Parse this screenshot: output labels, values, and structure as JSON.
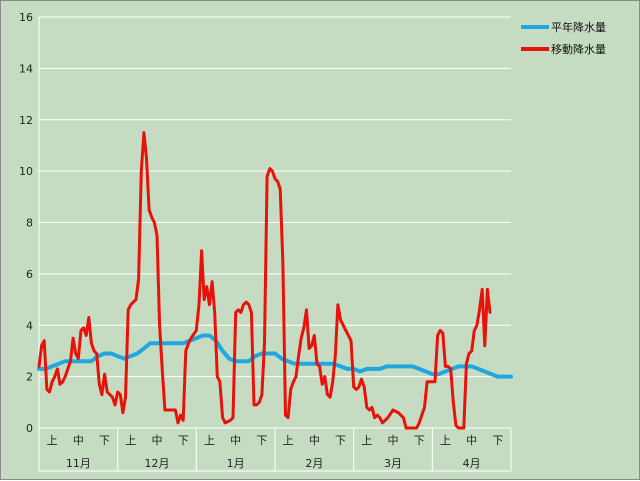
{
  "chart_data": {
    "type": "line",
    "title": "",
    "xlabel": "",
    "ylabel": "",
    "ylim": [
      0,
      16
    ],
    "yticks": [
      0,
      2,
      4,
      6,
      8,
      10,
      12,
      14,
      16
    ],
    "grid": "horizontal",
    "legend_position": "top-right",
    "month_labels": [
      "11月",
      "12月",
      "1月",
      "2月",
      "3月",
      "4月"
    ],
    "decade_labels": [
      "上",
      "中",
      "下"
    ],
    "x_unit": "pentad index (0 = start of 11月, 36 = end of 4月)",
    "x_range": [
      0,
      36
    ],
    "series": [
      {
        "name": "平年降水量",
        "color": "#1ea7e1",
        "points": [
          [
            0,
            2.3
          ],
          [
            0.5,
            2.3
          ],
          [
            1,
            2.4
          ],
          [
            1.5,
            2.5
          ],
          [
            2,
            2.6
          ],
          [
            2.5,
            2.6
          ],
          [
            3,
            2.6
          ],
          [
            3.5,
            2.6
          ],
          [
            4,
            2.6
          ],
          [
            4.5,
            2.8
          ],
          [
            5,
            2.9
          ],
          [
            5.5,
            2.9
          ],
          [
            6,
            2.8
          ],
          [
            6.5,
            2.7
          ],
          [
            7,
            2.8
          ],
          [
            7.5,
            2.9
          ],
          [
            8,
            3.1
          ],
          [
            8.5,
            3.3
          ],
          [
            9,
            3.3
          ],
          [
            9.5,
            3.3
          ],
          [
            10,
            3.3
          ],
          [
            10.5,
            3.3
          ],
          [
            11,
            3.3
          ],
          [
            11.5,
            3.4
          ],
          [
            12,
            3.5
          ],
          [
            12.5,
            3.6
          ],
          [
            13,
            3.6
          ],
          [
            13.5,
            3.4
          ],
          [
            14,
            3.0
          ],
          [
            14.5,
            2.7
          ],
          [
            15,
            2.6
          ],
          [
            15.5,
            2.6
          ],
          [
            16,
            2.6
          ],
          [
            16.5,
            2.8
          ],
          [
            17,
            2.9
          ],
          [
            17.5,
            2.9
          ],
          [
            18,
            2.9
          ],
          [
            18.5,
            2.7
          ],
          [
            19,
            2.6
          ],
          [
            19.5,
            2.5
          ],
          [
            20,
            2.5
          ],
          [
            20.5,
            2.5
          ],
          [
            21,
            2.5
          ],
          [
            21.5,
            2.5
          ],
          [
            22,
            2.5
          ],
          [
            22.5,
            2.5
          ],
          [
            23,
            2.4
          ],
          [
            23.5,
            2.3
          ],
          [
            24,
            2.3
          ],
          [
            24.5,
            2.2
          ],
          [
            25,
            2.3
          ],
          [
            25.5,
            2.3
          ],
          [
            26,
            2.3
          ],
          [
            26.5,
            2.4
          ],
          [
            27,
            2.4
          ],
          [
            27.5,
            2.4
          ],
          [
            28,
            2.4
          ],
          [
            28.5,
            2.4
          ],
          [
            29,
            2.3
          ],
          [
            29.5,
            2.2
          ],
          [
            30,
            2.1
          ],
          [
            30.5,
            2.1
          ],
          [
            31,
            2.2
          ],
          [
            31.5,
            2.3
          ],
          [
            32,
            2.4
          ],
          [
            32.5,
            2.4
          ],
          [
            33,
            2.4
          ],
          [
            33.5,
            2.3
          ],
          [
            34,
            2.2
          ],
          [
            34.5,
            2.1
          ],
          [
            35,
            2.0
          ],
          [
            35.5,
            2.0
          ],
          [
            36,
            2.0
          ]
        ]
      },
      {
        "name": "移動降水量",
        "color": "#e8120a",
        "points": [
          [
            0,
            2.4
          ],
          [
            0.2,
            3.2
          ],
          [
            0.4,
            3.4
          ],
          [
            0.6,
            1.5
          ],
          [
            0.8,
            1.4
          ],
          [
            1.0,
            1.8
          ],
          [
            1.2,
            2.0
          ],
          [
            1.4,
            2.3
          ],
          [
            1.6,
            1.7
          ],
          [
            1.8,
            1.8
          ],
          [
            2.0,
            2.0
          ],
          [
            2.2,
            2.3
          ],
          [
            2.4,
            2.6
          ],
          [
            2.6,
            3.5
          ],
          [
            2.8,
            2.9
          ],
          [
            3.0,
            2.7
          ],
          [
            3.2,
            3.8
          ],
          [
            3.4,
            3.9
          ],
          [
            3.6,
            3.6
          ],
          [
            3.8,
            4.3
          ],
          [
            4.0,
            3.3
          ],
          [
            4.2,
            3.0
          ],
          [
            4.4,
            2.9
          ],
          [
            4.6,
            1.7
          ],
          [
            4.8,
            1.3
          ],
          [
            5.0,
            2.1
          ],
          [
            5.2,
            1.4
          ],
          [
            5.4,
            1.3
          ],
          [
            5.6,
            1.2
          ],
          [
            5.8,
            0.9
          ],
          [
            6.0,
            1.4
          ],
          [
            6.2,
            1.3
          ],
          [
            6.4,
            0.6
          ],
          [
            6.6,
            1.2
          ],
          [
            6.8,
            4.6
          ],
          [
            7.0,
            4.8
          ],
          [
            7.2,
            4.9
          ],
          [
            7.4,
            5.0
          ],
          [
            7.6,
            5.8
          ],
          [
            7.8,
            10.0
          ],
          [
            8.0,
            11.5
          ],
          [
            8.2,
            10.5
          ],
          [
            8.4,
            8.5
          ],
          [
            8.6,
            8.2
          ],
          [
            8.8,
            8.0
          ],
          [
            9.0,
            7.5
          ],
          [
            9.2,
            4.0
          ],
          [
            9.4,
            2.3
          ],
          [
            9.6,
            0.7
          ],
          [
            10.0,
            0.7
          ],
          [
            10.4,
            0.7
          ],
          [
            10.6,
            0.2
          ],
          [
            10.8,
            0.5
          ],
          [
            11.0,
            0.3
          ],
          [
            11.2,
            3.0
          ],
          [
            11.4,
            3.3
          ],
          [
            11.6,
            3.5
          ],
          [
            12.0,
            3.8
          ],
          [
            12.2,
            4.8
          ],
          [
            12.4,
            6.9
          ],
          [
            12.6,
            5.0
          ],
          [
            12.8,
            5.5
          ],
          [
            13.0,
            4.8
          ],
          [
            13.2,
            5.7
          ],
          [
            13.4,
            4.5
          ],
          [
            13.6,
            2.0
          ],
          [
            13.8,
            1.8
          ],
          [
            14.0,
            0.4
          ],
          [
            14.2,
            0.2
          ],
          [
            14.6,
            0.3
          ],
          [
            14.8,
            0.4
          ],
          [
            15.0,
            4.5
          ],
          [
            15.2,
            4.6
          ],
          [
            15.4,
            4.5
          ],
          [
            15.6,
            4.8
          ],
          [
            15.8,
            4.9
          ],
          [
            16.0,
            4.8
          ],
          [
            16.2,
            4.5
          ],
          [
            16.4,
            0.9
          ],
          [
            16.6,
            0.9
          ],
          [
            16.8,
            1.0
          ],
          [
            17.0,
            1.3
          ],
          [
            17.2,
            3.3
          ],
          [
            17.4,
            9.8
          ],
          [
            17.6,
            10.1
          ],
          [
            17.8,
            10.0
          ],
          [
            18.0,
            9.7
          ],
          [
            18.2,
            9.6
          ],
          [
            18.4,
            9.3
          ],
          [
            18.6,
            6.4
          ],
          [
            18.8,
            0.5
          ],
          [
            19.0,
            0.4
          ],
          [
            19.2,
            1.5
          ],
          [
            19.4,
            1.8
          ],
          [
            19.6,
            2.0
          ],
          [
            19.8,
            2.8
          ],
          [
            20.0,
            3.5
          ],
          [
            20.2,
            3.9
          ],
          [
            20.4,
            4.6
          ],
          [
            20.6,
            3.1
          ],
          [
            20.8,
            3.2
          ],
          [
            21.0,
            3.6
          ],
          [
            21.2,
            2.5
          ],
          [
            21.4,
            2.4
          ],
          [
            21.6,
            1.7
          ],
          [
            21.8,
            2.0
          ],
          [
            22.0,
            1.3
          ],
          [
            22.2,
            1.2
          ],
          [
            22.4,
            1.8
          ],
          [
            22.6,
            2.8
          ],
          [
            22.8,
            4.8
          ],
          [
            23.0,
            4.2
          ],
          [
            23.2,
            4.0
          ],
          [
            23.4,
            3.8
          ],
          [
            23.6,
            3.6
          ],
          [
            23.8,
            3.4
          ],
          [
            24.0,
            1.6
          ],
          [
            24.2,
            1.5
          ],
          [
            24.4,
            1.6
          ],
          [
            24.6,
            1.9
          ],
          [
            24.8,
            1.6
          ],
          [
            25.0,
            0.8
          ],
          [
            25.2,
            0.7
          ],
          [
            25.4,
            0.8
          ],
          [
            25.6,
            0.4
          ],
          [
            25.8,
            0.5
          ],
          [
            26.0,
            0.4
          ],
          [
            26.2,
            0.2
          ],
          [
            26.4,
            0.3
          ],
          [
            26.6,
            0.4
          ],
          [
            27.0,
            0.7
          ],
          [
            27.4,
            0.6
          ],
          [
            27.8,
            0.4
          ],
          [
            28.0,
            0.0
          ],
          [
            28.4,
            0.0
          ],
          [
            28.8,
            0.0
          ],
          [
            29.0,
            0.2
          ],
          [
            29.2,
            0.5
          ],
          [
            29.4,
            0.8
          ],
          [
            29.6,
            1.8
          ],
          [
            30.0,
            1.8
          ],
          [
            30.2,
            1.8
          ],
          [
            30.4,
            3.6
          ],
          [
            30.6,
            3.8
          ],
          [
            30.8,
            3.7
          ],
          [
            31.0,
            2.4
          ],
          [
            31.2,
            2.4
          ],
          [
            31.4,
            2.3
          ],
          [
            31.6,
            1.0
          ],
          [
            31.8,
            0.1
          ],
          [
            32.0,
            0.0
          ],
          [
            32.4,
            0.0
          ],
          [
            32.6,
            2.5
          ],
          [
            32.8,
            2.9
          ],
          [
            33.0,
            3.0
          ],
          [
            33.2,
            3.8
          ],
          [
            33.4,
            4.0
          ],
          [
            33.6,
            4.6
          ],
          [
            33.8,
            5.4
          ],
          [
            34.0,
            3.2
          ],
          [
            34.2,
            5.4
          ],
          [
            34.4,
            4.5
          ]
        ]
      }
    ]
  }
}
